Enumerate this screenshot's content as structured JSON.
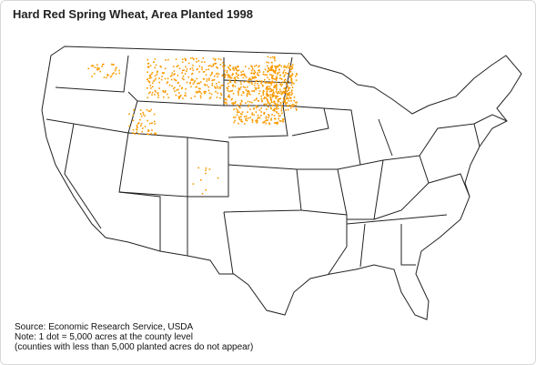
{
  "header": {
    "title": "Hard Red Spring Wheat, Area Planted 1998"
  },
  "source": {
    "lines": [
      "Source: Economic Research Service, USDA",
      "Note: 1 dot = 5,000 acres at the county level",
      "(counties with less than 5,000 planted acres do not appear)"
    ]
  }
}
